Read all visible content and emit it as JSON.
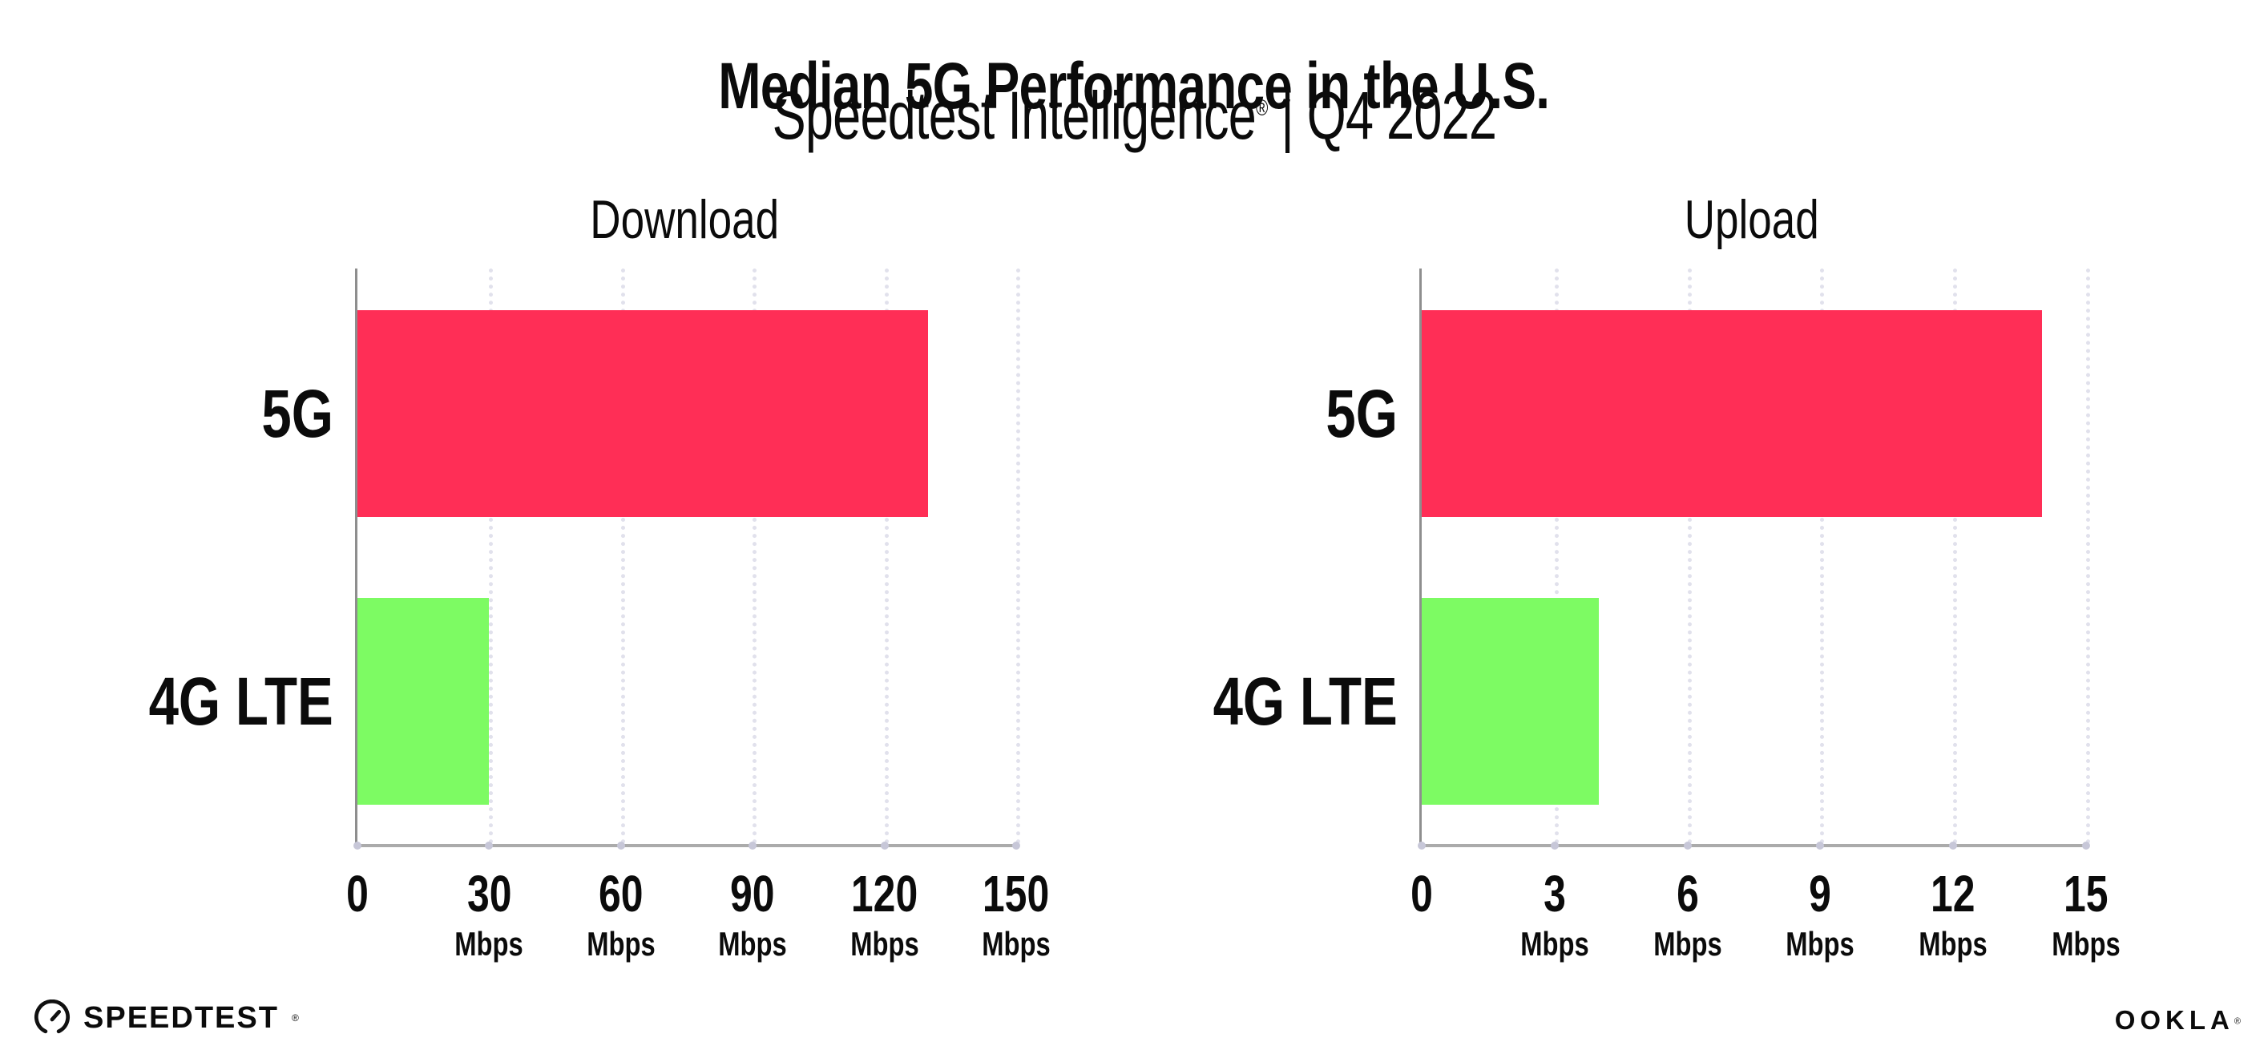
{
  "header": {
    "title": "Median 5G Performance in the U.S.",
    "subtitle_brand": "Speedtest Intelligence",
    "registered_mark": "®",
    "subtitle_rest": " | Q4 2022"
  },
  "colors": {
    "bar_5g": "#FF2E56",
    "bar_4g_lte": "#7DFB63",
    "axis_y": "#8e8e8e",
    "axis_x": "#ababab",
    "grid": "#e1e1ec",
    "tick_dot": "#c7c7d8",
    "text": "#0b0b0b",
    "background": "#ffffff"
  },
  "chart_data": [
    {
      "type": "bar",
      "orientation": "horizontal",
      "title": "Download",
      "categories": [
        "5G",
        "4G LTE"
      ],
      "values": [
        130,
        30
      ],
      "unit": "Mbps",
      "xlim": [
        0,
        150
      ],
      "ticks": [
        0,
        30,
        60,
        90,
        120,
        150
      ],
      "tick_unit": "Mbps",
      "bar_colors": [
        "#FF2E56",
        "#7DFB63"
      ],
      "grid": "vertical-dotted",
      "legend": "none"
    },
    {
      "type": "bar",
      "orientation": "horizontal",
      "title": "Upload",
      "categories": [
        "5G",
        "4G LTE"
      ],
      "values": [
        14,
        4
      ],
      "unit": "Mbps",
      "xlim": [
        0,
        15
      ],
      "ticks": [
        0,
        3,
        6,
        9,
        12,
        15
      ],
      "tick_unit": "Mbps",
      "bar_colors": [
        "#FF2E56",
        "#7DFB63"
      ],
      "grid": "vertical-dotted",
      "legend": "none"
    }
  ],
  "footer": {
    "speedtest": "SPEEDTEST",
    "speedtest_mark": "®",
    "ookla": "OOKLA",
    "ookla_mark": "®"
  }
}
